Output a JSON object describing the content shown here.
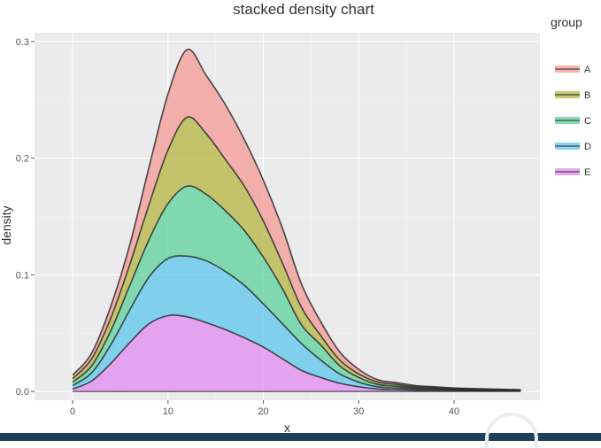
{
  "chart_data": {
    "type": "area",
    "title": "stacked density chart",
    "xlabel": "x",
    "ylabel": "density",
    "xlim": [
      -4,
      49
    ],
    "ylim": [
      -0.0075,
      0.3075
    ],
    "xticks": [
      0,
      10,
      20,
      30,
      40
    ],
    "yticks": [
      0.0,
      0.1,
      0.2,
      0.3
    ],
    "xtick_labels": [
      "0",
      "10",
      "20",
      "30",
      "40"
    ],
    "ytick_labels": [
      "0.0",
      "0.1",
      "0.2",
      "0.3"
    ],
    "legend_title": "group",
    "legend_position": "right",
    "grid": true,
    "stacked": true,
    "x": [
      0,
      2,
      4,
      6,
      8,
      10,
      12,
      14,
      16,
      18,
      20,
      22,
      24,
      26,
      28,
      30,
      32,
      34,
      36,
      38,
      40,
      42,
      44,
      47
    ],
    "series": [
      {
        "name": "E",
        "color": "#E28BF0",
        "values": [
          0.002,
          0.009,
          0.024,
          0.042,
          0.058,
          0.065,
          0.064,
          0.059,
          0.053,
          0.046,
          0.038,
          0.028,
          0.018,
          0.012,
          0.007,
          0.004,
          0.002,
          0.0015,
          0.001,
          0.0008,
          0.0006,
          0.0005,
          0.0004,
          0.0003
        ]
      },
      {
        "name": "D",
        "color": "#5CC6EE",
        "values": [
          0.003,
          0.007,
          0.016,
          0.028,
          0.04,
          0.049,
          0.052,
          0.053,
          0.05,
          0.045,
          0.037,
          0.03,
          0.023,
          0.015,
          0.008,
          0.004,
          0.002,
          0.0015,
          0.001,
          0.0008,
          0.0006,
          0.0005,
          0.0004,
          0.0003
        ]
      },
      {
        "name": "C",
        "color": "#5BD19C",
        "values": [
          0.003,
          0.006,
          0.012,
          0.021,
          0.032,
          0.047,
          0.06,
          0.057,
          0.052,
          0.047,
          0.04,
          0.03,
          0.016,
          0.013,
          0.007,
          0.004,
          0.002,
          0.0015,
          0.001,
          0.0008,
          0.0006,
          0.0005,
          0.0004,
          0.0003
        ]
      },
      {
        "name": "B",
        "color": "#B5B542",
        "values": [
          0.003,
          0.006,
          0.011,
          0.018,
          0.03,
          0.046,
          0.059,
          0.052,
          0.044,
          0.038,
          0.031,
          0.022,
          0.015,
          0.008,
          0.005,
          0.003,
          0.002,
          0.0015,
          0.001,
          0.0008,
          0.0006,
          0.0005,
          0.0004,
          0.0003
        ]
      },
      {
        "name": "A",
        "color": "#F39A96",
        "values": [
          0.003,
          0.005,
          0.01,
          0.017,
          0.032,
          0.048,
          0.058,
          0.05,
          0.047,
          0.04,
          0.035,
          0.03,
          0.02,
          0.012,
          0.007,
          0.004,
          0.002,
          0.0015,
          0.001,
          0.0008,
          0.0006,
          0.0005,
          0.0004,
          0.0003
        ]
      }
    ],
    "legend_order": [
      "A",
      "B",
      "C",
      "D",
      "E"
    ]
  }
}
